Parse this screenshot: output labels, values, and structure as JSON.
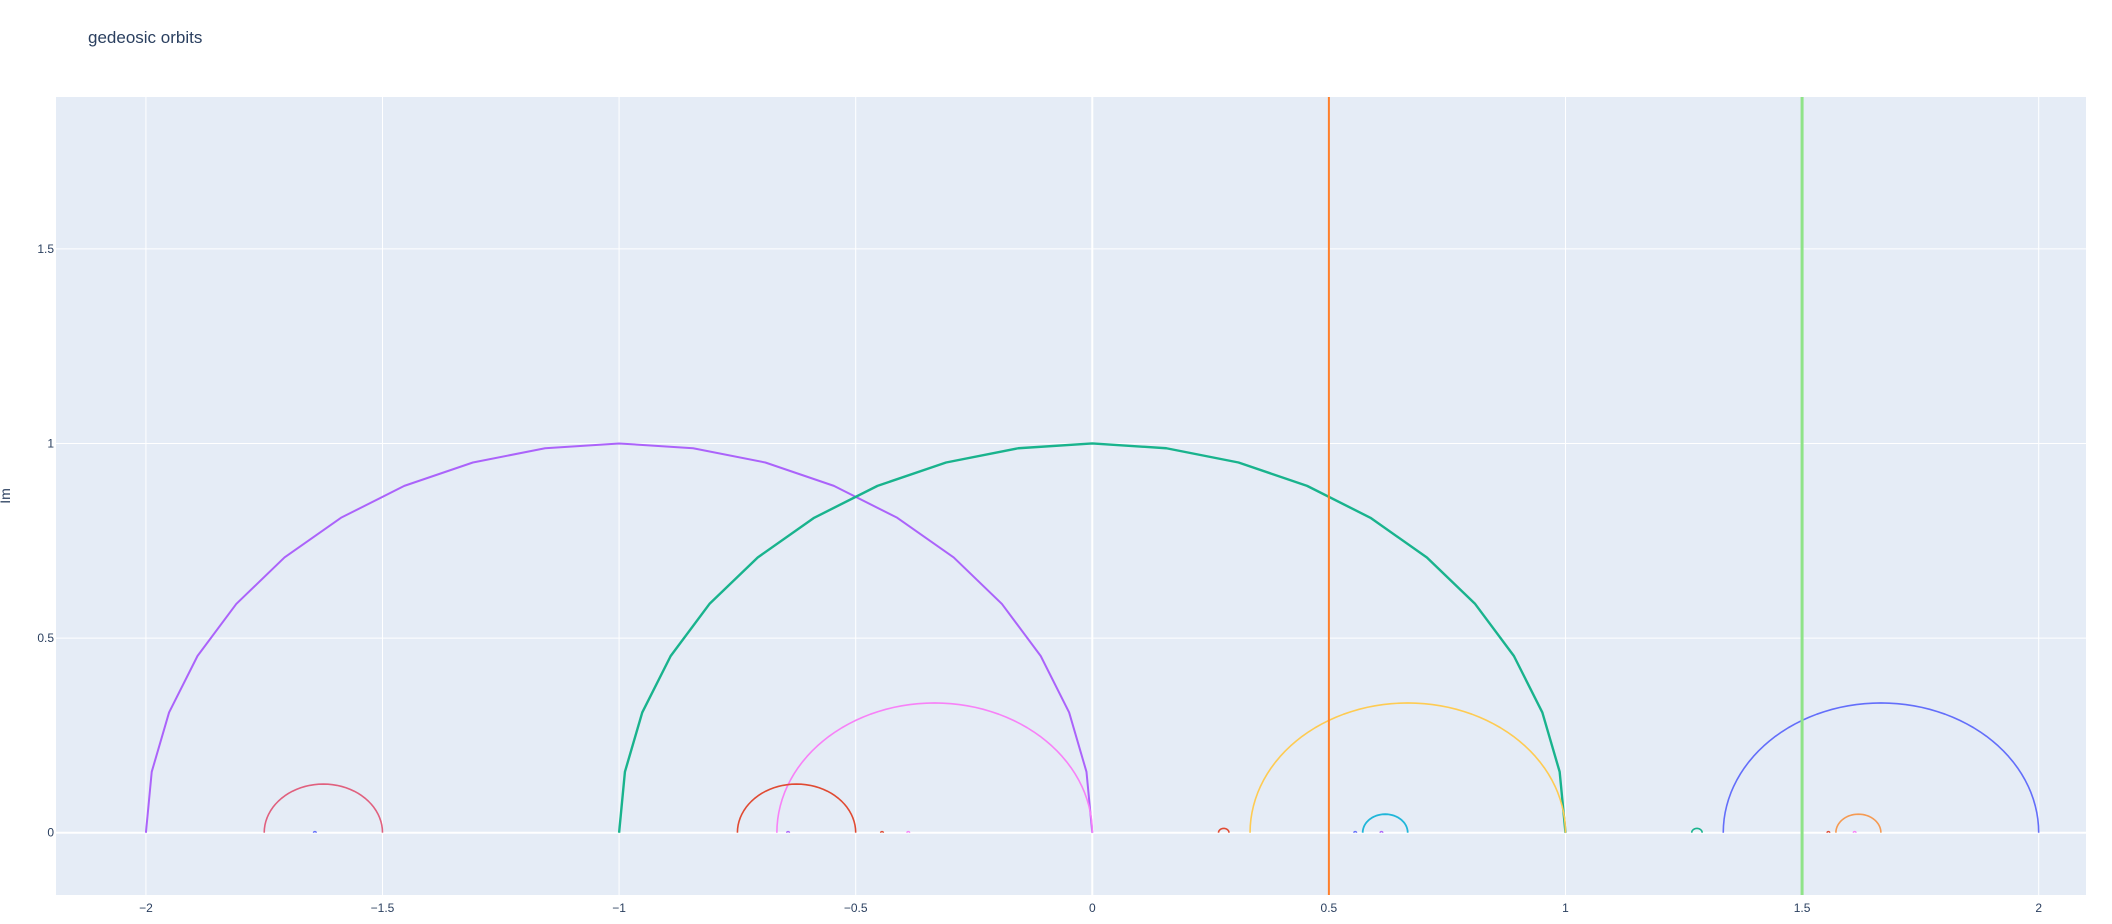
{
  "chart_data": {
    "type": "line",
    "title": "gedeosic orbits",
    "xlabel": "",
    "ylabel": "Im",
    "xlim": [
      -2.19,
      2.1
    ],
    "ylim": [
      -0.16,
      1.89
    ],
    "xticks": [
      -2,
      -1.5,
      -1,
      -0.5,
      0,
      0.5,
      1,
      1.5,
      2
    ],
    "xtick_labels": [
      "−2",
      "−1.5",
      "−1",
      "−0.5",
      "0",
      "0.5",
      "1",
      "1.5",
      "2"
    ],
    "yticks": [
      0,
      0.5,
      1,
      1.5
    ],
    "ytick_labels": [
      "0",
      "0.5",
      "1",
      "1.5"
    ],
    "grid": true,
    "legend": "none",
    "plot_bg": "#e5ecf6",
    "series": [
      {
        "kind": "semicircle",
        "center": -1,
        "radius": 1,
        "color": "#ab63fa",
        "segments": 20,
        "width": 2
      },
      {
        "kind": "semicircle",
        "center": 0,
        "radius": 1,
        "color": "#19b38d",
        "segments": 20,
        "width": 2.4
      },
      {
        "kind": "semicircle",
        "center": -0.3333,
        "radius": 0.3333,
        "color": "#f781f7",
        "segments": 60,
        "width": 1.6
      },
      {
        "kind": "semicircle",
        "center": 0.6667,
        "radius": 0.3333,
        "color": "#fecb52",
        "segments": 60,
        "width": 1.6
      },
      {
        "kind": "semicircle",
        "center": 1.6667,
        "radius": 0.3333,
        "color": "#636efa",
        "segments": 60,
        "width": 1.6
      },
      {
        "kind": "semicircle",
        "center": -1.625,
        "radius": 0.125,
        "color": "#e0607e",
        "segments": 40,
        "width": 1.6
      },
      {
        "kind": "semicircle",
        "center": -0.625,
        "radius": 0.125,
        "color": "#e04a32",
        "segments": 40,
        "width": 1.6
      },
      {
        "kind": "semicircle",
        "center": 0.619,
        "radius": 0.0476,
        "color": "#1fb6d9",
        "segments": 30,
        "width": 1.8
      },
      {
        "kind": "semicircle",
        "center": 1.619,
        "radius": 0.0476,
        "color": "#f59a52",
        "segments": 30,
        "width": 1.6
      },
      {
        "kind": "semicircle",
        "center": 0.2778,
        "radius": 0.0111,
        "color": "#e04a32",
        "segments": 20,
        "width": 1.6
      },
      {
        "kind": "semicircle",
        "center": 1.2778,
        "radius": 0.0111,
        "color": "#19b38d",
        "segments": 20,
        "width": 1.6
      },
      {
        "kind": "semicircle",
        "center": -1.6429,
        "radius": 0.003,
        "color": "#636efa",
        "segments": 10,
        "width": 1.4
      },
      {
        "kind": "semicircle",
        "center": -0.6429,
        "radius": 0.003,
        "color": "#ab63fa",
        "segments": 10,
        "width": 1.4
      },
      {
        "kind": "semicircle",
        "center": -0.4444,
        "radius": 0.003,
        "color": "#e04a32",
        "segments": 10,
        "width": 1.4
      },
      {
        "kind": "semicircle",
        "center": -0.3889,
        "radius": 0.003,
        "color": "#f781f7",
        "segments": 10,
        "width": 1.4
      },
      {
        "kind": "semicircle",
        "center": 0.5556,
        "radius": 0.003,
        "color": "#636efa",
        "segments": 10,
        "width": 1.4
      },
      {
        "kind": "semicircle",
        "center": 0.6111,
        "radius": 0.003,
        "color": "#ab63fa",
        "segments": 10,
        "width": 1.4
      },
      {
        "kind": "semicircle",
        "center": 1.5556,
        "radius": 0.003,
        "color": "#e04a32",
        "segments": 10,
        "width": 1.4
      },
      {
        "kind": "semicircle",
        "center": 1.6111,
        "radius": 0.003,
        "color": "#f781f7",
        "segments": 10,
        "width": 1.4
      },
      {
        "kind": "vline",
        "x": 0.5,
        "color": "#ff7f2a",
        "width": 2
      },
      {
        "kind": "vline",
        "x": 1.5,
        "color": "#8fe388",
        "width": 3
      }
    ]
  }
}
